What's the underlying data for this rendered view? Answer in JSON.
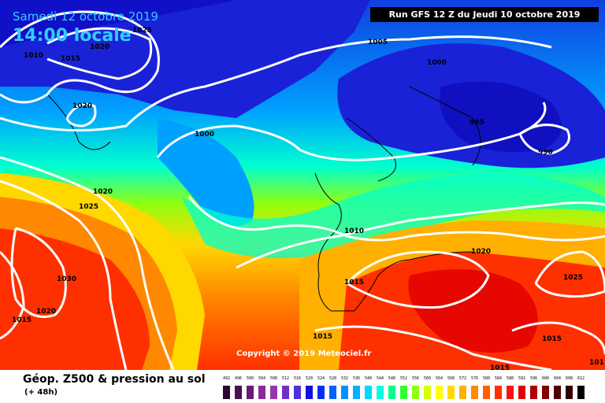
{
  "header": {
    "date": "Samedi 12 octobre 2019",
    "time": "14:00 locale",
    "run": "Run GFS 12 Z du Jeudi 10 octobre 2019"
  },
  "footer": {
    "title": "Géop. Z500 & pression au sol",
    "subtitle": "(+ 48h)",
    "copyright": "Copyright © 2019 Meteociel.fr"
  },
  "isobar_labels": {
    "l1025_nw": "1025",
    "l1010_nw": "1010",
    "l1015_nw": "1015",
    "l1020_nw": "1020",
    "l1020_gl": "1020",
    "l1005_n": "1005",
    "l1000_n": "1000",
    "l1000_atl": "1000",
    "l995": "995",
    "l990": "990",
    "l1020_w": "1020",
    "l1025_w": "1025",
    "l1030": "1030",
    "l1020_sw": "1020",
    "l1015_sw": "1015",
    "l1010_fr": "1010",
    "l1015_ib": "1015",
    "l1020_it": "1020",
    "l1025_e": "1025",
    "l1015_med": "1015",
    "l1015_se": "1015",
    "l1015_s": "1015",
    "l101_edge": "101"
  },
  "legend": {
    "levels": [
      "492",
      "496",
      "500",
      "504",
      "508",
      "512",
      "516",
      "520",
      "524",
      "528",
      "532",
      "536",
      "540",
      "544",
      "548",
      "552",
      "556",
      "560",
      "564",
      "568",
      "572",
      "576",
      "580",
      "584",
      "588",
      "592",
      "596",
      "600",
      "604",
      "608",
      "612"
    ],
    "colors": [
      "#2a0a2e",
      "#4a0f52",
      "#6a1b7a",
      "#8a2a9a",
      "#9a35b0",
      "#7030c8",
      "#5030d8",
      "#1010e0",
      "#0030f0",
      "#0060ff",
      "#0090ff",
      "#00b0ff",
      "#00d8ff",
      "#00ffe0",
      "#00ff90",
      "#30ff30",
      "#90ff10",
      "#d8ff00",
      "#ffff00",
      "#ffd800",
      "#ffb000",
      "#ff8800",
      "#ff6000",
      "#ff3000",
      "#ff1010",
      "#e00000",
      "#b00000",
      "#800000",
      "#500000",
      "#300000",
      "#000000"
    ]
  }
}
